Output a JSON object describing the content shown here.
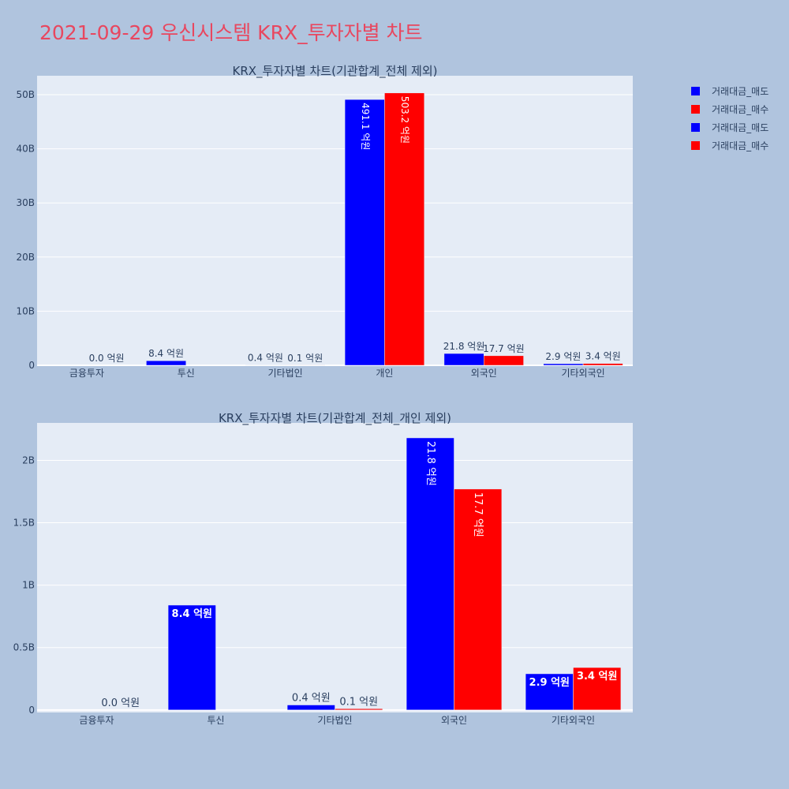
{
  "page": {
    "title": "2021-09-29 우신시스템 KRX_투자자별 차트"
  },
  "colors": {
    "sell": "#0000ff",
    "buy": "#ff0000",
    "plot_bg": "#e5ecf6",
    "page_bg": "#b0c4de"
  },
  "legend": {
    "items": [
      {
        "label": "거래대금_매도",
        "color": "#0000ff"
      },
      {
        "label": "거래대금_매수",
        "color": "#ff0000"
      },
      {
        "label": "거래대금_매도",
        "color": "#0000ff"
      },
      {
        "label": "거래대금_매수",
        "color": "#ff0000"
      }
    ]
  },
  "chart_data": [
    {
      "type": "bar",
      "title": "KRX_투자자별 차트(기관합계_전체 제외)",
      "categories": [
        "금융투자",
        "투신",
        "기타법인",
        "개인",
        "외국인",
        "기타외국인"
      ],
      "series": [
        {
          "name": "거래대금_매도",
          "color": "#0000ff",
          "values": [
            0,
            840000000,
            40000000,
            49110000000,
            2180000000,
            290000000
          ],
          "labels": [
            "",
            "8.4 억원",
            "0.4 억원",
            "491.1 억원",
            "21.8 억원",
            "2.9 억원"
          ]
        },
        {
          "name": "거래대금_매수",
          "color": "#ff0000",
          "values": [
            0,
            0,
            10000000,
            50320000000,
            1770000000,
            340000000
          ],
          "labels": [
            "0.0 억원",
            "",
            "0.1 억원",
            "503.2 억원",
            "17.7 억원",
            "3.4 억원"
          ]
        }
      ],
      "ylim": [
        0,
        53500000000
      ],
      "yticks": [
        0,
        10000000000,
        20000000000,
        30000000000,
        40000000000,
        50000000000
      ],
      "ytick_labels": [
        "0",
        "10B",
        "20B",
        "30B",
        "40B",
        "50B"
      ],
      "grid": true
    },
    {
      "type": "bar",
      "title": "KRX_투자자별 차트(기관합계_전체_개인 제외)",
      "categories": [
        "금융투자",
        "투신",
        "기타법인",
        "외국인",
        "기타외국인"
      ],
      "series": [
        {
          "name": "거래대금_매도",
          "color": "#0000ff",
          "values": [
            0,
            840000000,
            40000000,
            2180000000,
            290000000
          ],
          "labels": [
            "",
            "8.4 억원",
            "0.4 억원",
            "21.8 억원",
            "2.9 억원"
          ]
        },
        {
          "name": "거래대금_매수",
          "color": "#ff0000",
          "values": [
            0,
            0,
            10000000,
            1770000000,
            340000000
          ],
          "labels": [
            "0.0 억원",
            "",
            "0.1 억원",
            "17.7 억원",
            "3.4 억원"
          ]
        }
      ],
      "ylim": [
        -20000000,
        2300000000
      ],
      "yticks": [
        0,
        500000000,
        1000000000,
        1500000000,
        2000000000
      ],
      "ytick_labels": [
        "0",
        "0.5B",
        "1B",
        "1.5B",
        "2B"
      ],
      "grid": true
    }
  ]
}
